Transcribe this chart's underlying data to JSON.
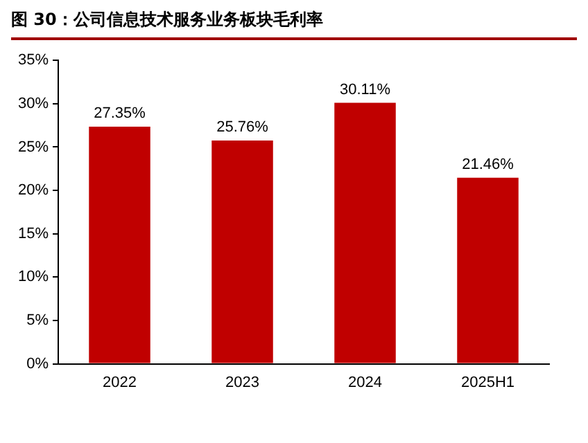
{
  "chart_data": {
    "type": "bar",
    "title": "图 30：公司信息技术服务业务板块毛利率",
    "categories": [
      "2022",
      "2023",
      "2024",
      "2025H1"
    ],
    "values": [
      27.35,
      25.76,
      30.11,
      21.46
    ],
    "value_labels": [
      "27.35%",
      "25.76%",
      "30.11%",
      "21.46%"
    ],
    "color": "#c00000",
    "ylim": [
      0,
      35
    ],
    "yticks": [
      {
        "value": 0,
        "label": "0%"
      },
      {
        "value": 5,
        "label": "5%"
      },
      {
        "value": 10,
        "label": "10%"
      },
      {
        "value": 15,
        "label": "15%"
      },
      {
        "value": 20,
        "label": "20%"
      },
      {
        "value": 25,
        "label": "25%"
      },
      {
        "value": 30,
        "label": "30%"
      },
      {
        "value": 35,
        "label": "35%"
      }
    ],
    "grid": false,
    "legend": false
  }
}
